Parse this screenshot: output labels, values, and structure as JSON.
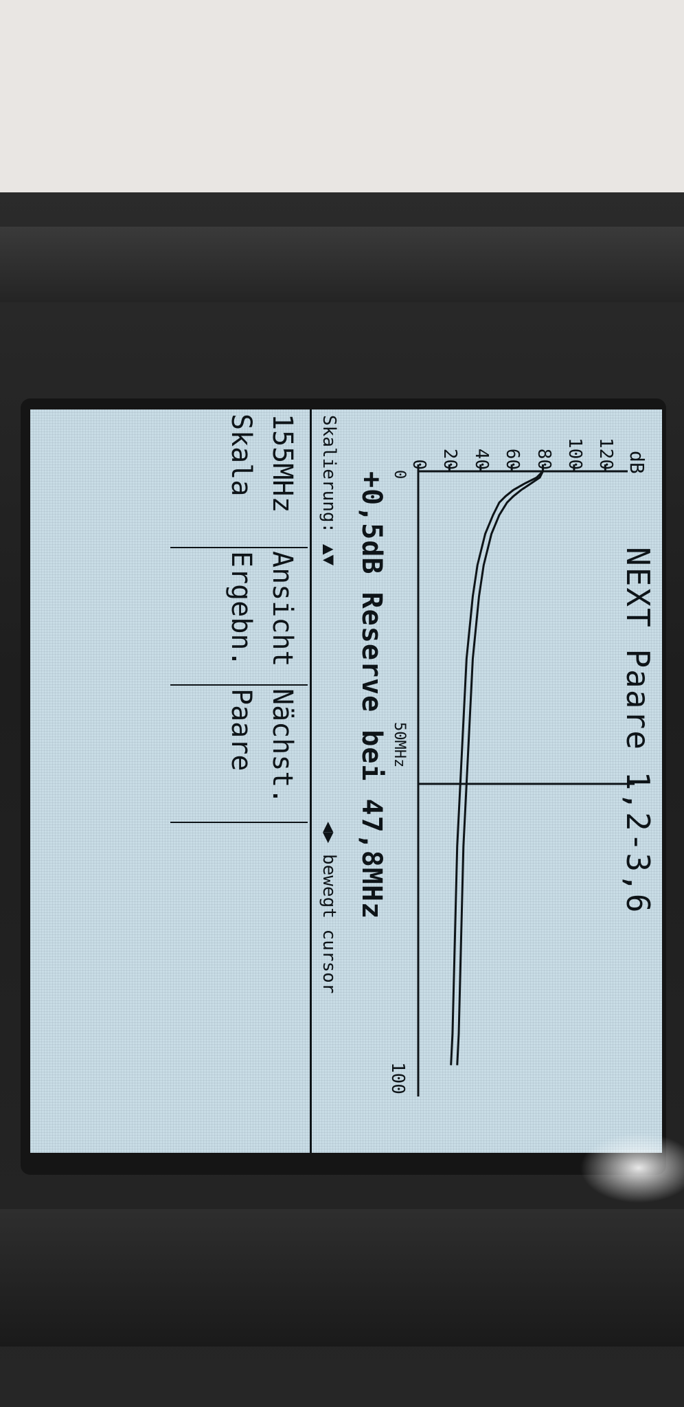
{
  "header": {
    "title": "NEXT Paare 1,2-3,6",
    "y_unit": "dB"
  },
  "chart_data": {
    "type": "line",
    "title": "NEXT Paare 1,2-3,6",
    "ylabel": "dB",
    "y_ticks": [
      "120",
      "100",
      "80",
      "60",
      "40",
      "20",
      "0"
    ],
    "ylim": [
      0,
      130
    ],
    "xlim": [
      0,
      100
    ],
    "x_tick_labels": [
      "0",
      "50MHz",
      "100"
    ],
    "cursor_x": 50,
    "series": [
      {
        "values_x": [
          0,
          1,
          2,
          3,
          4,
          5,
          7,
          10,
          15,
          20,
          30,
          40,
          50,
          60,
          70,
          80,
          90,
          95
        ],
        "values_y": [
          80,
          78,
          72,
          66,
          61,
          57,
          52,
          47,
          42,
          39,
          35,
          33,
          31,
          29,
          28,
          27,
          26,
          25
        ]
      },
      {
        "values_x": [
          0,
          1,
          2,
          3,
          4,
          5,
          7,
          10,
          15,
          20,
          30,
          40,
          50,
          60,
          70,
          80,
          90,
          95
        ],
        "values_y": [
          80,
          76,
          68,
          61,
          56,
          52,
          48,
          43,
          38,
          35,
          31,
          29,
          27,
          25,
          24,
          23,
          22,
          21
        ]
      }
    ]
  },
  "status": {
    "reserve": "+0,5dB Reserve bei 47,8MHz",
    "scale_hint": "Skalierung: ▲▼",
    "cursor_hint": "◀▶ bewegt cursor"
  },
  "softkeys": [
    {
      "top": "155MHz",
      "bottom": "Skala"
    },
    {
      "top": "Ansicht",
      "bottom": "Ergebn."
    },
    {
      "top": "Nächst.",
      "bottom": "Paare"
    },
    {
      "top": "",
      "bottom": ""
    }
  ]
}
